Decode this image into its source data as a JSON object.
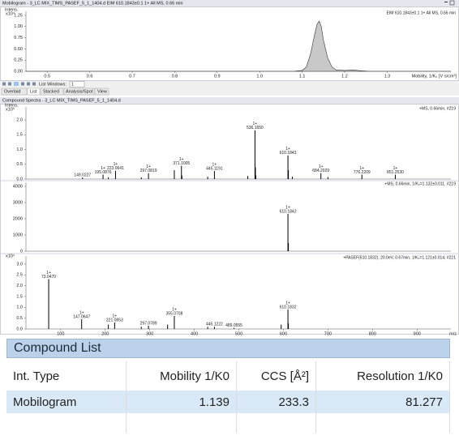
{
  "mobilogram_window": {
    "title": "Mobilogram - 3_LC MIX_TIMS_PASEF_5_1_1404.d EIM 610.1843±0.1 1+ All MS, 0.66 min"
  },
  "toolbar": {
    "list_windows_label": "List Windows:",
    "list_windows_value": "1"
  },
  "tabs": [
    "Overlaid",
    "List",
    "Stacked",
    "Analysis/Spot",
    "View"
  ],
  "spectra_window": {
    "title": "Compound Spectra - 3_LC MIX_TIMS_PASEF_5_1_1404.d"
  },
  "chart_data": [
    {
      "type": "area",
      "y_title": "Intens.",
      "y_exponent": "x10⁴",
      "x_title": "Mobility, 1/K₀ [V·s/cm²]",
      "legend": "EIM 610.1843±0.1 1+ All MS, 0.66 min",
      "color": "#c8c8c8",
      "x": [
        0.45,
        1.08,
        1.1,
        1.11,
        1.12,
        1.13,
        1.135,
        1.14,
        1.145,
        1.15,
        1.16,
        1.17,
        1.18,
        1.2,
        1.22,
        1.24,
        1.26,
        1.45
      ],
      "values": [
        0,
        0,
        0.02,
        0.1,
        0.4,
        0.85,
        1.05,
        1.12,
        1.0,
        0.7,
        0.3,
        0.1,
        0.03,
        0.02,
        0.03,
        0.01,
        0,
        0
      ],
      "xlim": [
        0.45,
        1.45
      ],
      "ylim": [
        0,
        1.34
      ],
      "xticks": [
        0.5,
        0.6,
        0.7,
        0.8,
        0.9,
        {
          "value": 1.0,
          "label": "1.0"
        },
        1.1,
        1.2,
        1.3
      ],
      "yticks": [
        {
          "value": 0,
          "label": "0.00"
        },
        0.25,
        {
          "value": 0.5,
          "label": "0.50"
        },
        0.75,
        {
          "value": 1,
          "label": "1.00"
        },
        1.25
      ]
    },
    {
      "type": "stick",
      "y_title": "Intens.",
      "y_exponent": "x10⁵",
      "legend": "+MS, 0.66min, #219",
      "color": "#000000",
      "x": [
        149.0227,
        195.0876,
        207.0,
        223.0641,
        281.0,
        297.0819,
        355.07,
        371.1005,
        372.1,
        430.0,
        445.1191,
        520.0,
        536.165,
        537.17,
        538.17,
        610.1843,
        611.19,
        620.0,
        684.2029,
        700.0,
        776.2209,
        851.253
      ],
      "values": [
        0.05,
        0.15,
        0.06,
        0.28,
        0.06,
        0.2,
        0.3,
        0.45,
        0.12,
        0.08,
        0.27,
        0.1,
        1.65,
        0.4,
        0.12,
        0.8,
        0.3,
        0.08,
        0.2,
        0.07,
        0.15,
        0.15
      ],
      "charges": [
        null,
        "1+",
        null,
        "1+",
        null,
        "1+",
        null,
        "1+",
        null,
        null,
        "1+",
        null,
        "1+",
        null,
        null,
        "1+",
        null,
        null,
        "1+",
        null,
        "1+",
        "1+"
      ],
      "x_labels": [
        "149.0227",
        "195.0876",
        null,
        "223.0641",
        null,
        "297.0819",
        null,
        "371.1005",
        null,
        null,
        "445.1191",
        null,
        "536.1650",
        null,
        null,
        "610.1843",
        null,
        null,
        "684.2029",
        null,
        "776.2209",
        "851.2530"
      ],
      "xlim": [
        22,
        976
      ],
      "ylim": [
        0,
        2.44
      ],
      "yticks": [
        {
          "value": 0,
          "label": "0.0"
        },
        0.5,
        {
          "value": 1,
          "label": "1.0"
        },
        1.5,
        {
          "value": 2,
          "label": "2.0"
        }
      ]
    },
    {
      "type": "stick",
      "legend": "+MS, 0.66min, 1/K₀=1.132±0.011, #219",
      "color": "#000000",
      "x": [
        610.1842,
        611.19
      ],
      "values": [
        2300,
        500
      ],
      "charges": [
        "1+",
        null
      ],
      "x_labels": [
        "610.1842",
        null
      ],
      "xlim": [
        22,
        976
      ],
      "ylim": [
        0,
        4250
      ],
      "yticks": [
        0,
        1000,
        2000,
        3000,
        4000
      ]
    },
    {
      "type": "stick",
      "y_exponent": "x10⁴",
      "x_title": "m/z",
      "legend": "+PASEF(610.1832), 20.0eV, 0.67min, 1/K₀=1.121±0.014, #221",
      "color": "#000000",
      "x": [
        73.047,
        147.0647,
        207.0,
        221.0853,
        281.0,
        297.0789,
        340.0,
        355.0708,
        430.0,
        445.1222,
        489.0555,
        595.0,
        610.1832,
        611.19
      ],
      "values": [
        2.3,
        0.45,
        0.2,
        0.3,
        0.1,
        0.15,
        0.2,
        0.6,
        0.1,
        0.1,
        0.05,
        0.2,
        0.9,
        0.25
      ],
      "charges": [
        "1+",
        "1+",
        null,
        "1+",
        null,
        null,
        null,
        "1+",
        null,
        null,
        null,
        null,
        "1+",
        null
      ],
      "x_labels": [
        "73.0470",
        "147.0647",
        null,
        "221.0853",
        null,
        "297.0789",
        null,
        "355.0708",
        null,
        "445.1222",
        "489.0555",
        null,
        "610.1832",
        null
      ],
      "xlim": [
        22,
        976
      ],
      "ylim": [
        0,
        3.37
      ],
      "xticks": [
        100,
        200,
        300,
        400,
        500,
        600,
        700,
        800,
        900
      ],
      "yticks": [
        {
          "value": 0,
          "label": "0.0"
        },
        0.5,
        {
          "value": 1,
          "label": "1.0"
        },
        1.5,
        {
          "value": 2,
          "label": "2.0"
        },
        2.5,
        {
          "value": 3,
          "label": "3.0"
        }
      ]
    }
  ],
  "compound_list": {
    "title": "Compound List",
    "columns": [
      "Int. Type",
      "Mobility 1/K0",
      "CCS [Å²]",
      "Resolution 1/K0"
    ],
    "rows": [
      [
        "Mobilogram",
        1.139,
        233.3,
        81.277
      ]
    ]
  }
}
